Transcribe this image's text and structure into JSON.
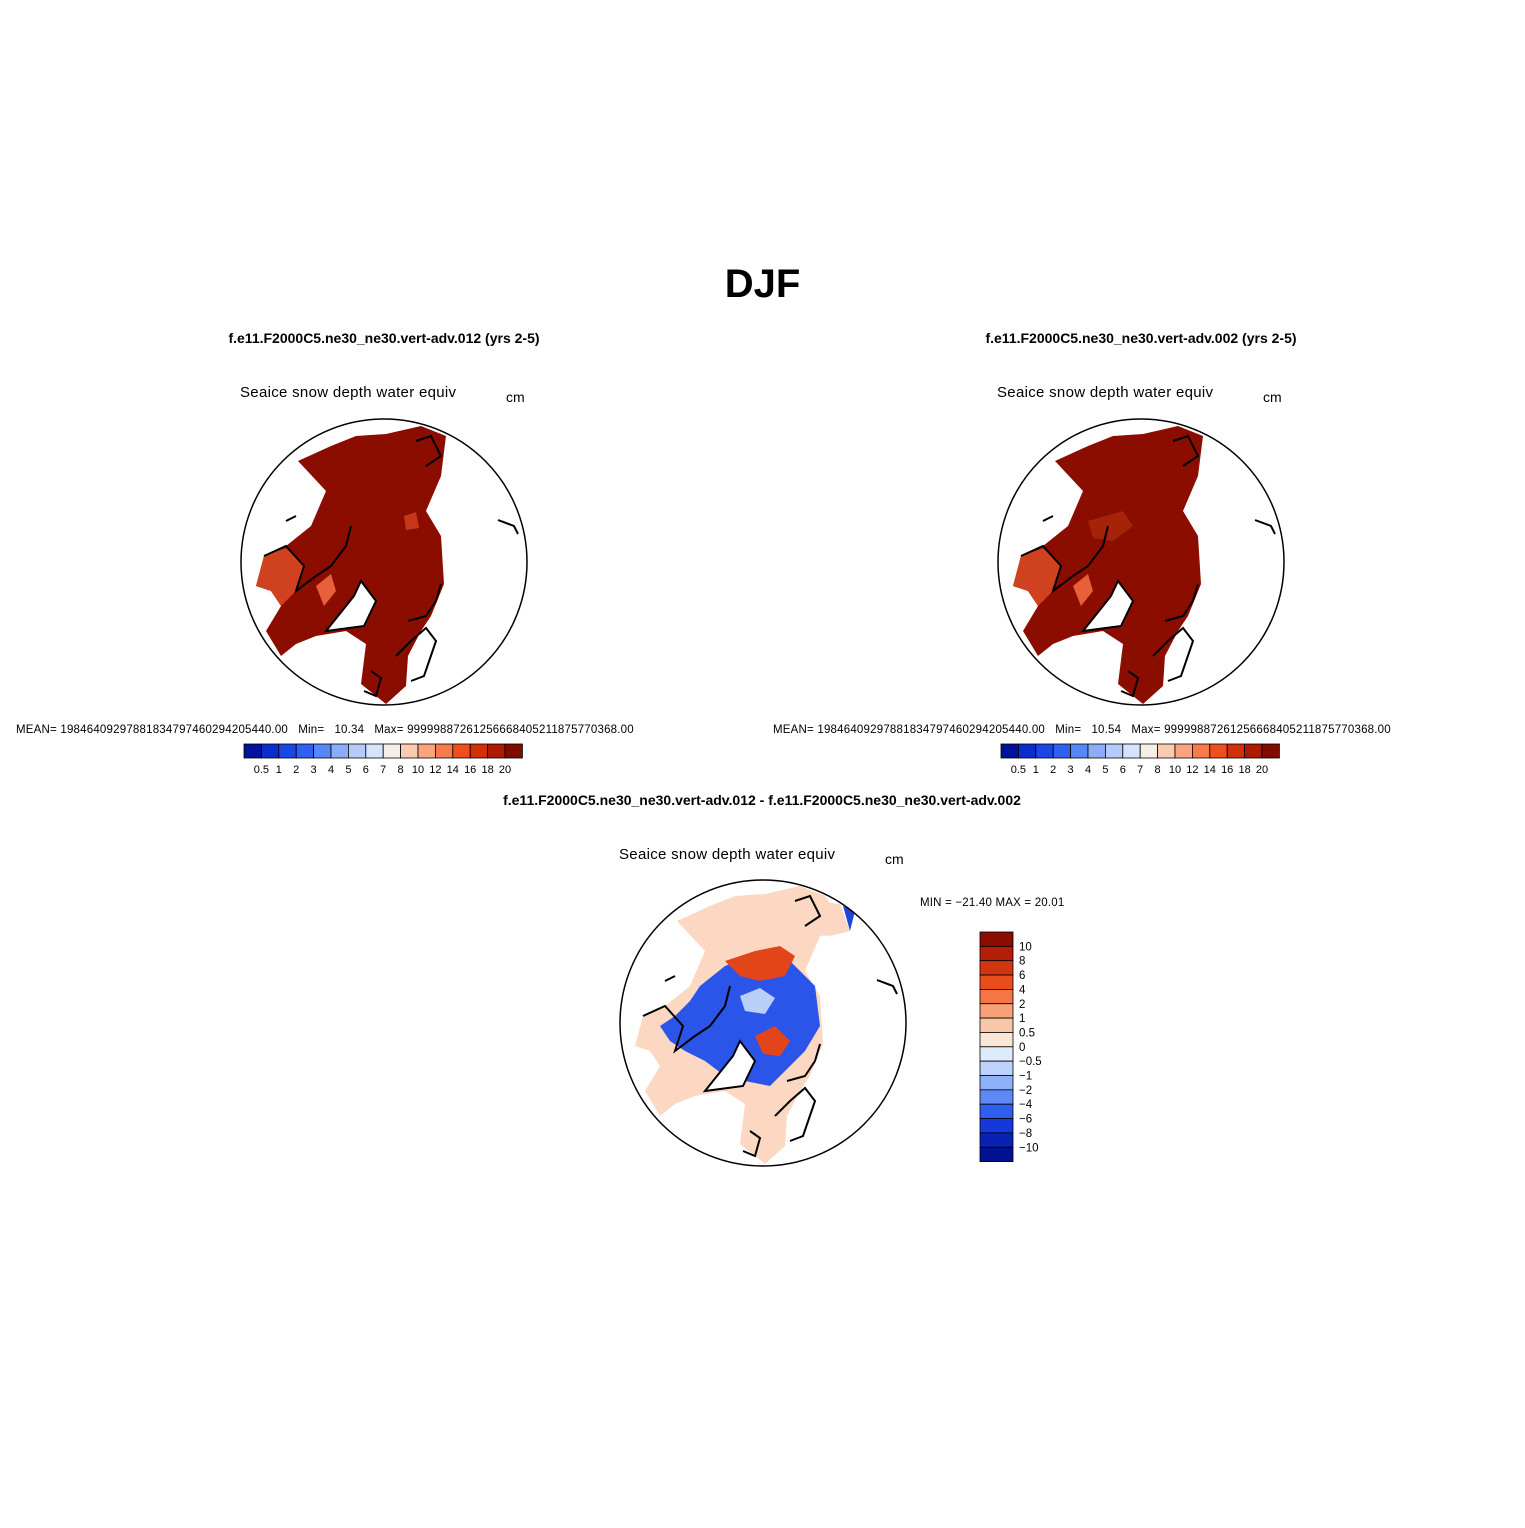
{
  "season_title": "DJF",
  "panels": [
    {
      "case_title": "f.e11.F2000C5.ne30_ne30.vert-adv.012 (yrs 2-5)",
      "variable": "Seaice snow depth water equiv",
      "units": "cm",
      "stats": {
        "mean_label": "MEAN=",
        "mean": "19846409297881834797460294205440.00",
        "min_label": "Min=",
        "min": "10.34",
        "max_label": "Max=",
        "max": "9999988726125666840521187577036​8.00"
      }
    },
    {
      "case_title": "f.e11.F2000C5.ne30_ne30.vert-adv.002 (yrs 2-5)",
      "variable": "Seaice snow depth water equiv",
      "units": "cm",
      "stats": {
        "mean_label": "MEAN=",
        "mean": "19846409297881834797460294205440.00",
        "min_label": "Min=",
        "min": "10.54",
        "max_label": "Max=",
        "max": "99999887261256668405211875770368.00"
      }
    }
  ],
  "difference": {
    "case_title": "f.e11.F2000C5.ne30_ne30.vert-adv.012 - f.e11.F2000C5.ne30_ne30.vert-adv.002",
    "variable": "Seaice snow depth water equiv",
    "units": "cm",
    "minmax": "MIN = −21.40 MAX =  20.01"
  },
  "colorbars": {
    "horizontal": {
      "labels": [
        "0.5",
        "1",
        "2",
        "3",
        "4",
        "5",
        "6",
        "7",
        "8",
        "10",
        "12",
        "14",
        "16",
        "18",
        "20"
      ],
      "colors": [
        "#00129a",
        "#0a2ecb",
        "#1a46e6",
        "#2f60f2",
        "#5786f7",
        "#8aacf9",
        "#b4cbfb",
        "#d6e3fd",
        "#f8eee8",
        "#f9cbb1",
        "#f7a47f",
        "#f57b4f",
        "#ef4f1f",
        "#d22f0c",
        "#ac1a04",
        "#7e0d01"
      ]
    },
    "vertical": {
      "labels": [
        "10",
        "8",
        "6",
        "4",
        "2",
        "1",
        "0.5",
        "0",
        "−0.5",
        "−1",
        "−2",
        "−4",
        "−6",
        "−8",
        "−10"
      ],
      "colors": [
        "#8a0e02",
        "#b21e06",
        "#d13611",
        "#ea4d1c",
        "#f47646",
        "#f8a078",
        "#fbc7aa",
        "#fbe6d8",
        "#deebfb",
        "#bcd4fb",
        "#8fb1f9",
        "#5d89f7",
        "#2f5df0",
        "#1637d9",
        "#0a22b2",
        "#001290"
      ]
    }
  },
  "map_fill": {
    "high": "#8b0d00",
    "mid": "#c7361a",
    "light": "#e8603a",
    "diff_blue": "#2a55e8",
    "diff_red": "#e2451a",
    "diff_peach": "#fcd8c2",
    "diff_lightblue": "#b8cff9"
  }
}
